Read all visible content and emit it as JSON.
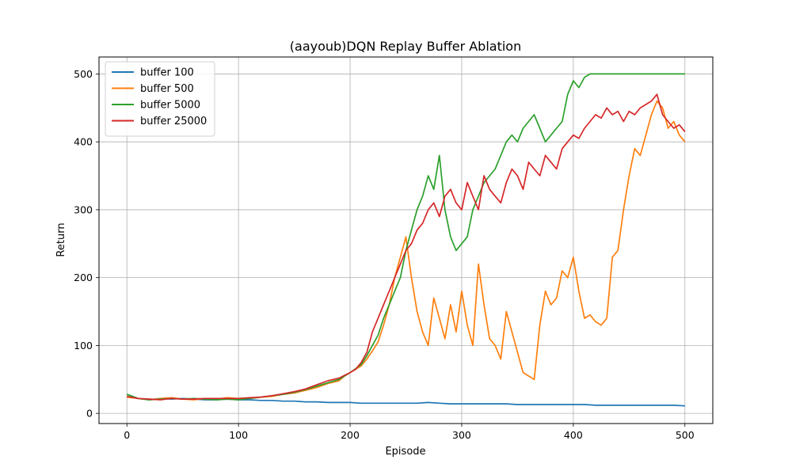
{
  "chart_data": {
    "type": "line",
    "title": "(aayoub)DQN Replay Buffer Ablation",
    "xlabel": "Episode",
    "ylabel": "Return",
    "xlim": [
      -25,
      525
    ],
    "ylim": [
      -15,
      525
    ],
    "xticks": [
      0,
      100,
      200,
      300,
      400,
      500
    ],
    "yticks": [
      0,
      100,
      200,
      300,
      400,
      500
    ],
    "x_tick_labels": [
      "0",
      "100",
      "200",
      "300",
      "400",
      "500"
    ],
    "y_tick_labels": [
      "0",
      "100",
      "200",
      "300",
      "400",
      "500"
    ],
    "grid": true,
    "legend_position": "top-left",
    "series": [
      {
        "name": "buffer 100",
        "color": "#1f77b4",
        "x": [
          0,
          10,
          20,
          30,
          40,
          50,
          60,
          70,
          80,
          90,
          100,
          110,
          120,
          130,
          140,
          150,
          160,
          170,
          180,
          190,
          200,
          210,
          220,
          230,
          240,
          250,
          260,
          270,
          280,
          290,
          300,
          310,
          320,
          330,
          340,
          350,
          360,
          370,
          380,
          390,
          400,
          410,
          420,
          430,
          440,
          450,
          460,
          470,
          480,
          490,
          500
        ],
        "values": [
          28,
          22,
          20,
          22,
          21,
          22,
          21,
          20,
          20,
          21,
          20,
          20,
          19,
          19,
          18,
          18,
          17,
          17,
          16,
          16,
          16,
          15,
          15,
          15,
          15,
          15,
          15,
          16,
          15,
          14,
          14,
          14,
          14,
          14,
          14,
          13,
          13,
          13,
          13,
          13,
          13,
          13,
          12,
          12,
          12,
          12,
          12,
          12,
          12,
          12,
          11
        ]
      },
      {
        "name": "buffer 500",
        "color": "#ff7f0e",
        "x": [
          0,
          10,
          20,
          30,
          40,
          50,
          60,
          70,
          80,
          90,
          100,
          110,
          120,
          130,
          140,
          150,
          160,
          170,
          180,
          190,
          195,
          200,
          205,
          210,
          215,
          220,
          225,
          230,
          235,
          240,
          245,
          250,
          255,
          260,
          265,
          270,
          275,
          280,
          285,
          290,
          295,
          300,
          305,
          310,
          315,
          320,
          325,
          330,
          335,
          340,
          345,
          350,
          355,
          360,
          365,
          370,
          375,
          380,
          385,
          390,
          395,
          400,
          405,
          410,
          415,
          420,
          425,
          430,
          435,
          440,
          445,
          450,
          455,
          460,
          465,
          470,
          475,
          480,
          485,
          490,
          495,
          500
        ],
        "values": [
          24,
          22,
          20,
          22,
          23,
          21,
          20,
          22,
          21,
          23,
          22,
          22,
          24,
          25,
          28,
          30,
          34,
          38,
          44,
          48,
          55,
          60,
          65,
          70,
          80,
          92,
          105,
          130,
          160,
          200,
          230,
          260,
          200,
          150,
          120,
          100,
          170,
          140,
          110,
          160,
          120,
          180,
          130,
          100,
          220,
          160,
          110,
          100,
          80,
          150,
          120,
          90,
          60,
          55,
          50,
          130,
          180,
          160,
          170,
          210,
          200,
          230,
          180,
          140,
          145,
          135,
          130,
          140,
          230,
          240,
          300,
          350,
          390,
          380,
          410,
          440,
          460,
          450,
          420,
          430,
          410,
          400
        ]
      },
      {
        "name": "buffer 5000",
        "color": "#2ca02c",
        "x": [
          0,
          10,
          20,
          30,
          40,
          50,
          60,
          70,
          80,
          90,
          100,
          110,
          120,
          130,
          140,
          150,
          160,
          170,
          180,
          190,
          195,
          200,
          205,
          210,
          215,
          220,
          225,
          230,
          235,
          240,
          245,
          250,
          255,
          260,
          265,
          270,
          275,
          280,
          285,
          290,
          295,
          300,
          305,
          310,
          315,
          320,
          325,
          330,
          335,
          340,
          345,
          350,
          355,
          360,
          365,
          370,
          375,
          380,
          385,
          390,
          395,
          400,
          405,
          410,
          415,
          420,
          425,
          430,
          440,
          450,
          460,
          470,
          480,
          490,
          500
        ],
        "values": [
          28,
          22,
          20,
          21,
          22,
          21,
          22,
          21,
          20,
          21,
          20,
          22,
          24,
          26,
          28,
          31,
          35,
          40,
          45,
          50,
          55,
          60,
          66,
          72,
          85,
          100,
          115,
          140,
          160,
          180,
          200,
          240,
          270,
          300,
          320,
          350,
          330,
          380,
          300,
          260,
          240,
          250,
          260,
          300,
          320,
          340,
          350,
          360,
          380,
          400,
          410,
          400,
          420,
          430,
          440,
          420,
          400,
          410,
          420,
          430,
          470,
          490,
          480,
          495,
          500,
          500,
          500,
          500,
          500,
          500,
          500,
          500,
          500,
          500,
          500
        ]
      },
      {
        "name": "buffer 25000",
        "color": "#d62728",
        "x": [
          0,
          10,
          20,
          30,
          40,
          50,
          60,
          70,
          80,
          90,
          100,
          110,
          120,
          130,
          140,
          150,
          160,
          170,
          180,
          190,
          195,
          200,
          205,
          210,
          215,
          220,
          225,
          230,
          235,
          240,
          245,
          250,
          255,
          260,
          265,
          270,
          275,
          280,
          285,
          290,
          295,
          300,
          305,
          310,
          315,
          320,
          325,
          330,
          335,
          340,
          345,
          350,
          355,
          360,
          365,
          370,
          375,
          380,
          385,
          390,
          395,
          400,
          405,
          410,
          415,
          420,
          425,
          430,
          435,
          440,
          445,
          450,
          455,
          460,
          465,
          470,
          475,
          480,
          485,
          490,
          495,
          500
        ],
        "values": [
          25,
          22,
          21,
          20,
          22,
          21,
          21,
          22,
          22,
          22,
          22,
          23,
          24,
          26,
          29,
          32,
          36,
          42,
          48,
          52,
          56,
          60,
          65,
          75,
          90,
          120,
          140,
          160,
          180,
          200,
          220,
          240,
          250,
          270,
          280,
          300,
          310,
          290,
          320,
          330,
          310,
          300,
          340,
          320,
          300,
          350,
          330,
          320,
          310,
          340,
          360,
          350,
          330,
          370,
          360,
          350,
          380,
          370,
          360,
          390,
          400,
          410,
          405,
          420,
          430,
          440,
          435,
          450,
          440,
          445,
          430,
          445,
          440,
          450,
          455,
          460,
          470,
          440,
          430,
          420,
          425,
          415
        ]
      }
    ]
  }
}
